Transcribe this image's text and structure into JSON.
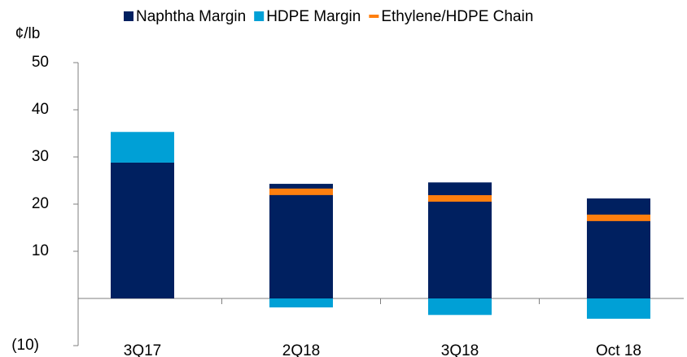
{
  "chart_data": {
    "type": "bar",
    "stacked": true,
    "y_label": "¢/lb",
    "categories": [
      "3Q17",
      "2Q18",
      "3Q18",
      "Oct 18"
    ],
    "series": [
      {
        "name": "Naphtha Margin",
        "color": "#002060",
        "values": [
          28.8,
          24.3,
          24.6,
          21.2
        ]
      },
      {
        "name": "HDPE Margin",
        "color": "#00a0d6",
        "values": [
          6.5,
          -1.9,
          -3.5,
          -4.3
        ]
      },
      {
        "name": "Ethylene/HDPE Chain",
        "type": "marker",
        "color": "#ff7f0e",
        "values": [
          null,
          22.6,
          21.2,
          17.1
        ]
      }
    ],
    "ylim": [
      -10,
      50
    ],
    "yticks": [
      {
        "value": -10,
        "label": "(10)"
      },
      10,
      20,
      30,
      40,
      50
    ],
    "legend": "top"
  }
}
